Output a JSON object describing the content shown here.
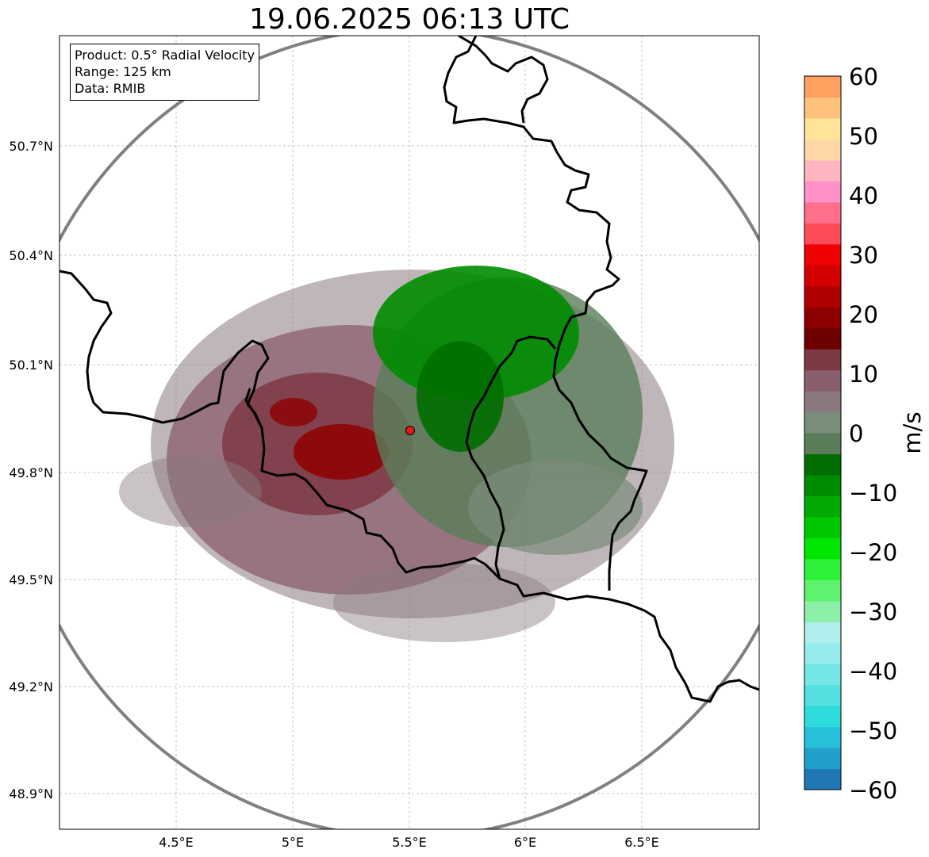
{
  "title": "19.06.2025 06:13 UTC",
  "info": {
    "product": "Product: 0.5° Radial Velocity",
    "range": "Range: 125 km",
    "data": "Data: RMIB"
  },
  "axes": {
    "lon_ticks": [
      "4.5°E",
      "5°E",
      "5.5°E",
      "6°E",
      "6.5°E"
    ],
    "lat_ticks": [
      "50.7°N",
      "50.4°N",
      "50.1°N",
      "49.8°N",
      "49.5°N",
      "49.2°N",
      "48.9°N"
    ]
  },
  "colorbar": {
    "label": "m/s",
    "ticks": [
      "60",
      "50",
      "40",
      "30",
      "20",
      "10",
      "0",
      "−10",
      "−20",
      "−30",
      "−40",
      "−50",
      "−60"
    ],
    "min": -60,
    "max": 60,
    "colors": [
      "#1f77b4",
      "#22a0cc",
      "#27c0d8",
      "#2fdcdc",
      "#52e0e0",
      "#74e6e6",
      "#96ecec",
      "#b0eeee",
      "#8df0a8",
      "#5ff26e",
      "#2ef23a",
      "#00e600",
      "#00c800",
      "#00aa00",
      "#008c00",
      "#006e00",
      "#5a7e5a",
      "#7a8c7a",
      "#8a7a80",
      "#8a5e6c",
      "#7c3a44",
      "#6e0000",
      "#8e0000",
      "#b00000",
      "#d40000",
      "#f00000",
      "#ff4a5a",
      "#ff6e8a",
      "#ff90c8",
      "#ffb4c0",
      "#ffd8a8",
      "#ffe49a",
      "#ffc27a",
      "#ffa060"
    ]
  },
  "radar_site": {
    "lon": 5.505,
    "lat": 49.914,
    "color": "#e21a1a"
  }
}
